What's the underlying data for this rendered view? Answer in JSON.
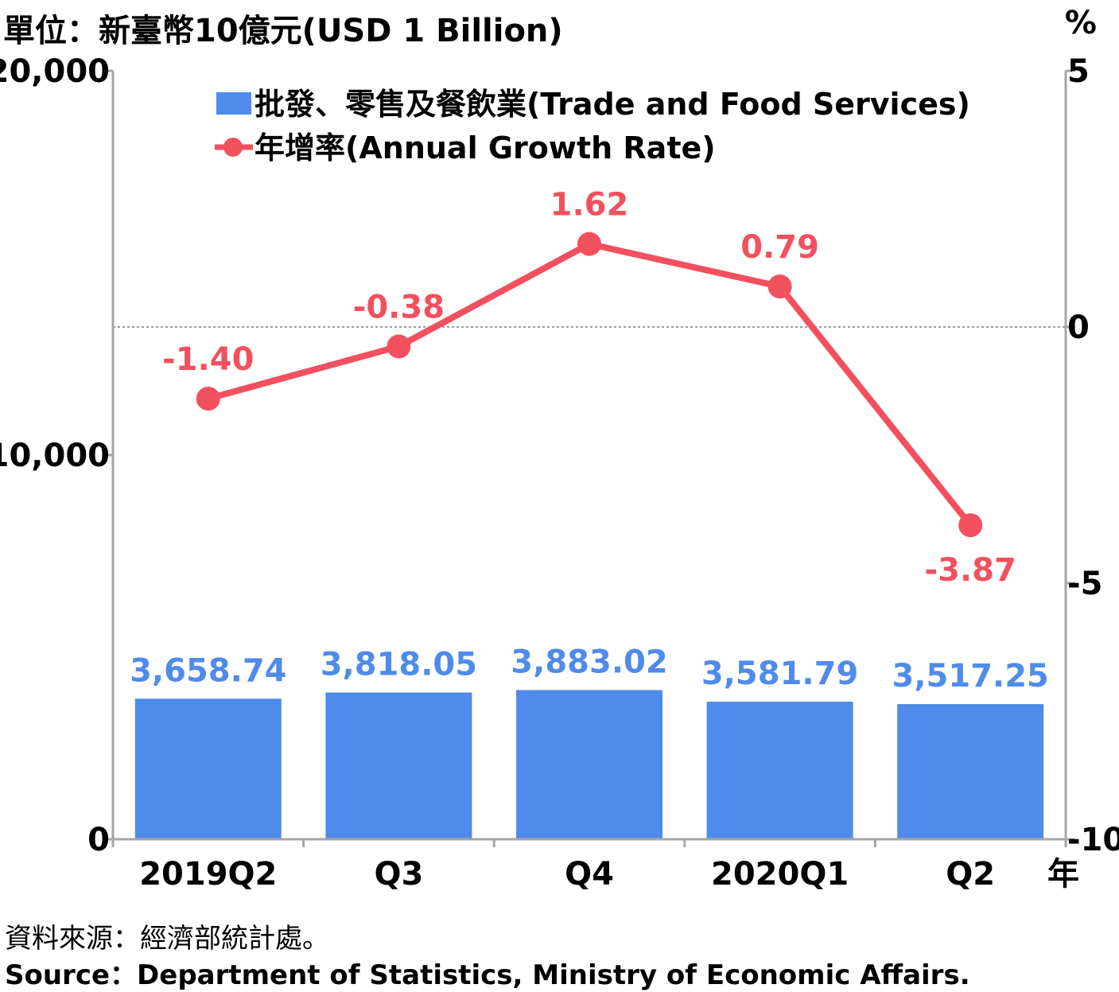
{
  "header": {
    "unit_left": "單位：新臺幣10億元(USD 1 Billion)",
    "unit_right": "%"
  },
  "footer": {
    "source_zh": "資料來源：經濟部統計處。",
    "source_en": "Source：Department of Statistics, Ministry of Economic Affairs."
  },
  "colors": {
    "bar": "#4f8bea",
    "line": "#f2505e",
    "axis": "#a6a6a6",
    "zero_line": "#999999"
  },
  "chart_data": {
    "type": "bar",
    "categories": [
      "2019Q2",
      "Q3",
      "Q4",
      "2020Q1",
      "Q2"
    ],
    "x_unit_label": "年",
    "series": [
      {
        "name": "批發、零售及餐飲業(Trade and Food Services)",
        "type": "bar",
        "axis": "left",
        "values": [
          3658.74,
          3818.05,
          3883.02,
          3581.79,
          3517.25
        ],
        "labels": [
          "3,658.74",
          "3,818.05",
          "3,883.02",
          "3,581.79",
          "3,517.25"
        ]
      },
      {
        "name": "年增率(Annual Growth Rate)",
        "type": "line",
        "axis": "right",
        "values": [
          -1.4,
          -0.38,
          1.62,
          0.79,
          -3.87
        ],
        "labels": [
          "-1.40",
          "-0.38",
          "1.62",
          "0.79",
          "-3.87"
        ]
      }
    ],
    "y_left": {
      "range": [
        0,
        20000
      ],
      "ticks": [
        "0",
        "10,000",
        "20,000"
      ]
    },
    "y_right": {
      "range": [
        -10,
        5
      ],
      "ticks": [
        "-10",
        "-5",
        "0",
        "5"
      ]
    },
    "zero_reference_line": true,
    "legend_position": "top-center"
  }
}
